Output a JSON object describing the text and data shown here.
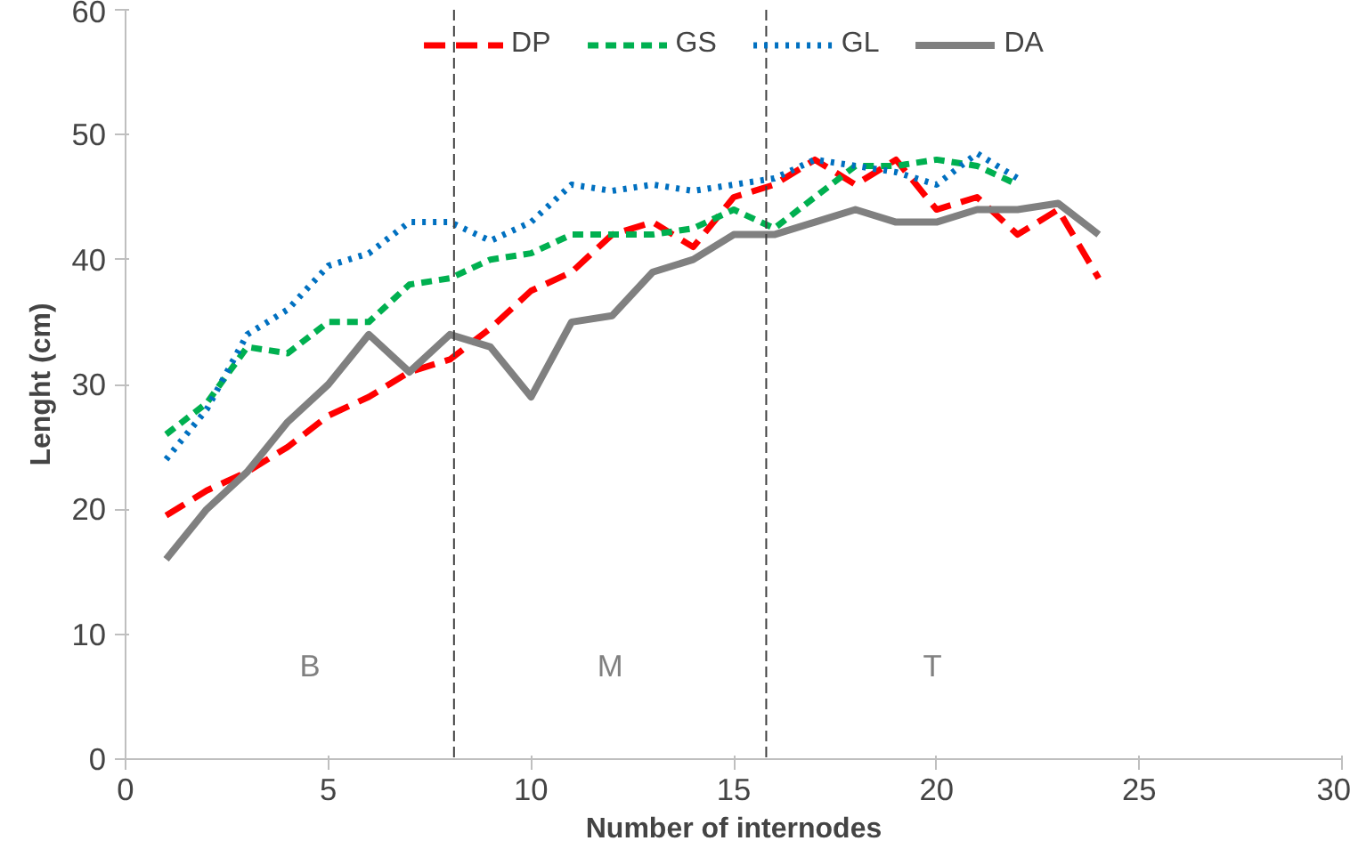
{
  "chart_data": {
    "type": "line",
    "xlabel": "Number of internodes",
    "ylabel": "Lenght (cm)",
    "xlim": [
      0,
      30
    ],
    "xticks": [
      0,
      5,
      10,
      15,
      20,
      25,
      30
    ],
    "ylim": [
      0,
      60
    ],
    "yticks": [
      0,
      10,
      20,
      30,
      40,
      50,
      60
    ],
    "grid": false,
    "legend": "top",
    "marker": "none",
    "series": [
      {
        "name": "DP",
        "color": "#ff0000",
        "line_style": "dashed",
        "x": [
          1,
          2,
          3,
          4,
          5,
          6,
          7,
          8,
          9,
          10,
          11,
          12,
          13,
          14,
          15,
          16,
          17,
          18,
          19,
          20,
          21,
          22,
          23,
          24
        ],
        "values": [
          19.5,
          21.5,
          23,
          25,
          27.5,
          29,
          31,
          32,
          34.5,
          37.5,
          39,
          42,
          43,
          41,
          45,
          46,
          48,
          46,
          48,
          44,
          45,
          42,
          44,
          38.5
        ]
      },
      {
        "name": "GS",
        "color": "#00b050",
        "line_style": "dashed",
        "x": [
          1,
          2,
          3,
          4,
          5,
          6,
          7,
          8,
          9,
          10,
          11,
          12,
          13,
          14,
          15,
          16,
          17,
          18,
          19,
          20,
          21,
          22
        ],
        "values": [
          26,
          28.5,
          33,
          32.5,
          35,
          35,
          38,
          38.5,
          40,
          40.5,
          42,
          42,
          42,
          42.5,
          44,
          42.5,
          45,
          47.5,
          47.5,
          48,
          47.5,
          46
        ]
      },
      {
        "name": "GL",
        "color": "#0070c0",
        "line_style": "dotted",
        "x": [
          1,
          2,
          3,
          4,
          5,
          6,
          7,
          8,
          9,
          10,
          11,
          12,
          13,
          14,
          15,
          16,
          17,
          18,
          19,
          20,
          21,
          22
        ],
        "values": [
          24,
          28,
          34,
          36,
          39.5,
          40.5,
          43,
          43,
          41.5,
          43,
          46,
          45.5,
          46,
          45.5,
          46,
          46.5,
          48,
          47.5,
          47,
          46,
          48.5,
          46.5
        ]
      },
      {
        "name": "DA",
        "color": "#808080",
        "line_style": "solid",
        "x": [
          1,
          2,
          3,
          4,
          5,
          6,
          7,
          8,
          9,
          10,
          11,
          12,
          13,
          14,
          15,
          16,
          17,
          18,
          19,
          20,
          21,
          22,
          23,
          24
        ],
        "values": [
          16,
          20,
          23,
          27,
          30,
          34,
          31,
          34,
          33,
          29,
          35,
          35.5,
          39,
          40,
          42,
          42,
          43,
          44,
          43,
          43,
          44,
          44,
          44.5,
          42
        ]
      }
    ],
    "ref_lines": [
      {
        "axis": "x",
        "value": 8.1,
        "color": "#404040",
        "line_style": "dashed"
      },
      {
        "axis": "x",
        "value": 15.8,
        "color": "#404040",
        "line_style": "dashed"
      }
    ],
    "annotations": [
      "B",
      "M",
      "T"
    ]
  }
}
